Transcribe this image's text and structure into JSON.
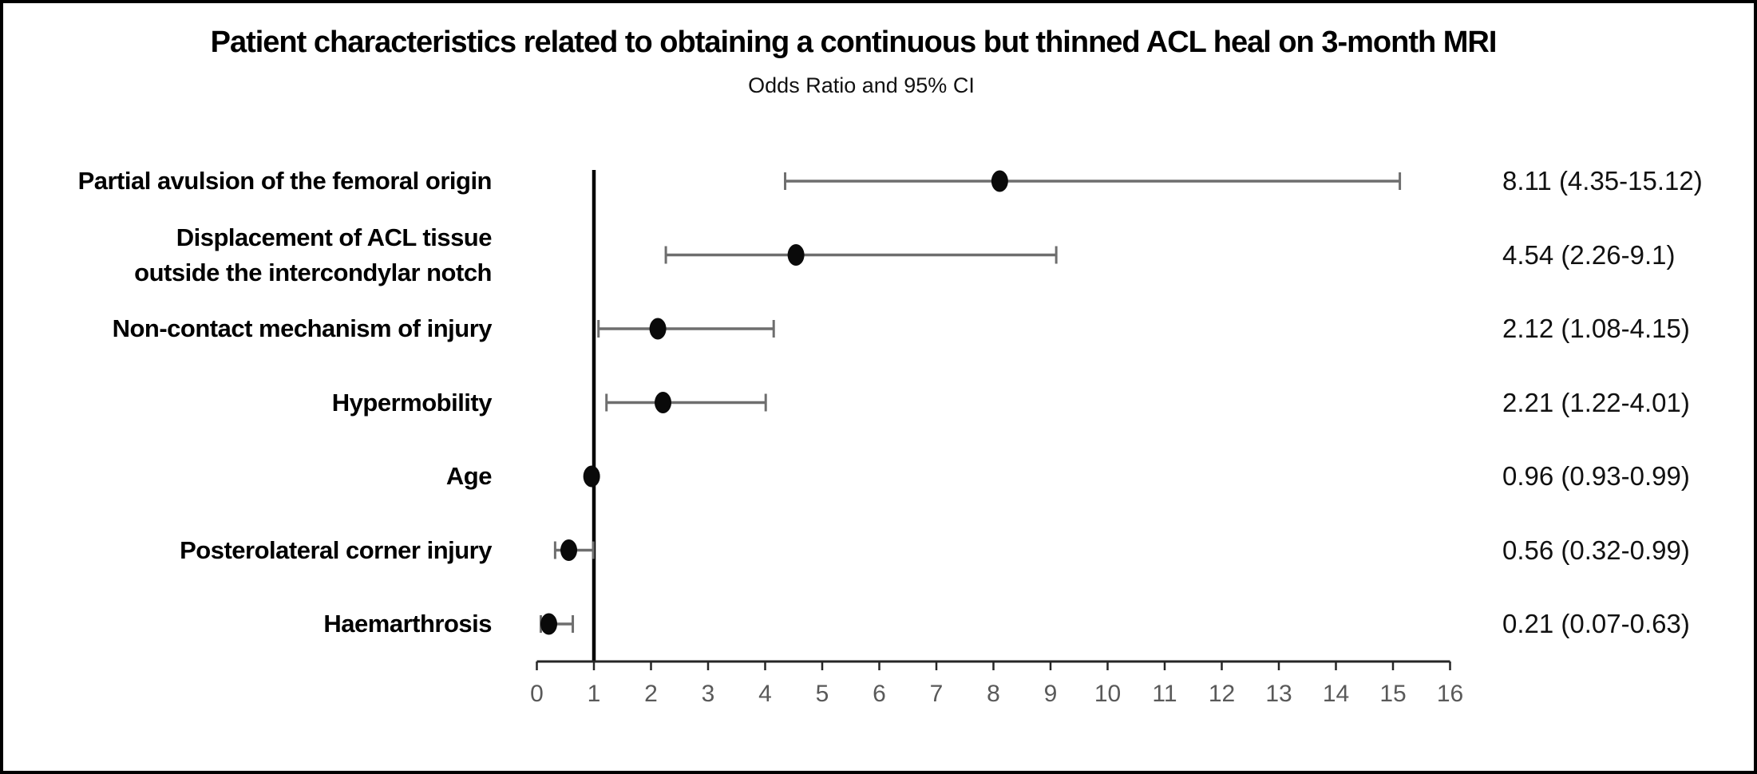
{
  "chart_data": {
    "type": "scatter",
    "variant": "forest-plot",
    "title": "Patient characteristics related to obtaining a continuous but thinned ACL heal on 3-month MRI",
    "subtitle": "Odds Ratio and 95% CI",
    "xlabel": "",
    "xlim": [
      0,
      16
    ],
    "x_ticks": [
      0,
      1,
      2,
      3,
      4,
      5,
      6,
      7,
      8,
      9,
      10,
      11,
      12,
      13,
      14,
      15,
      16
    ],
    "reference_line_x": 1,
    "grid": false,
    "legend": "none",
    "rows": [
      {
        "label": "Partial avulsion of the femoral origin",
        "or": 8.11,
        "ci_low": 4.35,
        "ci_high": 15.12,
        "value_text": "8.11 (4.35-15.12)"
      },
      {
        "label": "Displacement of ACL tissue\noutside the intercondylar notch",
        "or": 4.54,
        "ci_low": 2.26,
        "ci_high": 9.1,
        "value_text": "4.54 (2.26-9.1)"
      },
      {
        "label": "Non-contact mechanism of injury",
        "or": 2.12,
        "ci_low": 1.08,
        "ci_high": 4.15,
        "value_text": "2.12 (1.08-4.15)"
      },
      {
        "label": "Hypermobility",
        "or": 2.21,
        "ci_low": 1.22,
        "ci_high": 4.01,
        "value_text": "2.21 (1.22-4.01)"
      },
      {
        "label": "Age",
        "or": 0.96,
        "ci_low": 0.93,
        "ci_high": 0.99,
        "value_text": "0.96 (0.93-0.99)"
      },
      {
        "label": "Posterolateral corner injury",
        "or": 0.56,
        "ci_low": 0.32,
        "ci_high": 0.99,
        "value_text": "0.56 (0.32-0.99)"
      },
      {
        "label": "Haemarthrosis",
        "or": 0.21,
        "ci_low": 0.07,
        "ci_high": 0.63,
        "value_text": "0.21 (0.07-0.63)"
      }
    ],
    "colors": {
      "marker": "#0a0a0a",
      "whisker": "#6e6e6e",
      "axis": "#262626",
      "tick_label": "#595959",
      "reference_line": "#000000",
      "border": "#000000",
      "background": "#ffffff"
    }
  }
}
